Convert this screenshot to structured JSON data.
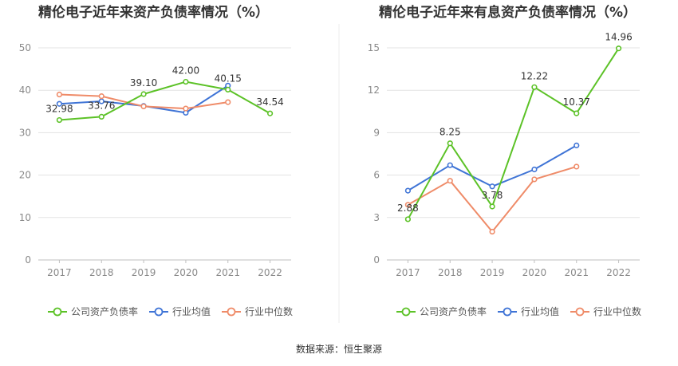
{
  "source": "数据来源：恒生聚源",
  "colors": {
    "company": "#5cc227",
    "industry_avg": "#3f74d6",
    "industry_median": "#ef8b68",
    "grid": "#e3e3e3",
    "axis_text": "#8a8a8a",
    "title": "#333333",
    "divider": "#eeeeee"
  },
  "legend": [
    "公司资产负债率",
    "行业均值",
    "行业中位数"
  ],
  "chart_data": [
    {
      "type": "line",
      "title": "精伦电子近年来资产负债率情况（%）",
      "categories": [
        "2017",
        "2018",
        "2019",
        "2020",
        "2021",
        "2022"
      ],
      "ylim": [
        0,
        50
      ],
      "yticks": [
        0,
        10,
        20,
        30,
        40,
        50
      ],
      "grid": true,
      "legend_position": "bottom",
      "series": [
        {
          "name": "公司资产负债率",
          "values": [
            32.98,
            33.76,
            39.1,
            42.0,
            40.15,
            34.54
          ],
          "labels": [
            "32.98",
            "33.76",
            "39.10",
            "42.00",
            "40.15",
            "34.54"
          ]
        },
        {
          "name": "行业均值",
          "values": [
            36.8,
            37.4,
            36.3,
            34.7,
            41.1,
            null
          ]
        },
        {
          "name": "行业中位数",
          "values": [
            39.0,
            38.6,
            36.2,
            35.7,
            37.2,
            null
          ]
        }
      ]
    },
    {
      "type": "line",
      "title": "精伦电子近年来有息资产负债率情况（%）",
      "categories": [
        "2017",
        "2018",
        "2019",
        "2020",
        "2021",
        "2022"
      ],
      "ylim": [
        0,
        15
      ],
      "yticks": [
        0,
        3,
        6,
        9,
        12,
        15
      ],
      "grid": true,
      "legend_position": "bottom",
      "series": [
        {
          "name": "公司资产负债率",
          "values": [
            2.88,
            8.25,
            3.78,
            12.22,
            10.37,
            14.96
          ],
          "labels": [
            "2.88",
            "8.25",
            "3.78",
            "12.22",
            "10.37",
            "14.96"
          ]
        },
        {
          "name": "行业均值",
          "values": [
            4.9,
            6.7,
            5.2,
            6.4,
            8.1,
            null
          ]
        },
        {
          "name": "行业中位数",
          "values": [
            3.9,
            5.6,
            2.0,
            5.7,
            6.6,
            null
          ]
        }
      ]
    }
  ]
}
